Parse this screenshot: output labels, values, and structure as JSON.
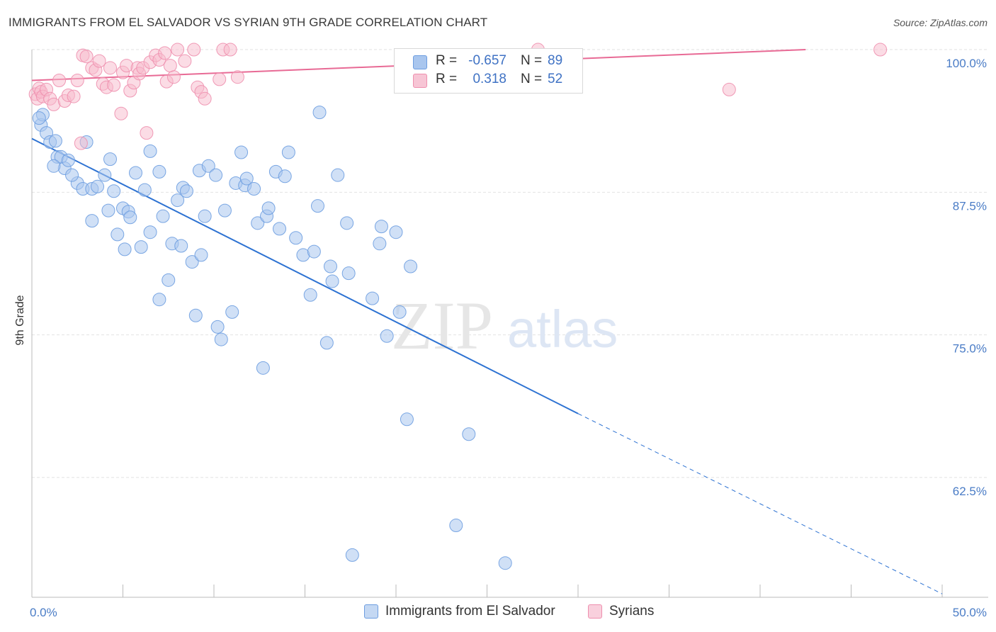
{
  "title": "IMMIGRANTS FROM EL SALVADOR VS SYRIAN 9TH GRADE CORRELATION CHART",
  "source": "Source: ZipAtlas.com",
  "watermark": {
    "zip": "ZIP",
    "atlas": "atlas"
  },
  "colors": {
    "blue_fill": "#a9c6ee",
    "blue_stroke": "#6d9de0",
    "blue_line": "#2d72d2",
    "pink_fill": "#f7b9cc",
    "pink_stroke": "#ee8fae",
    "pink_line": "#e86a95",
    "grid": "#e2e2e2",
    "tick_text": "#4a7cc6"
  },
  "legend_top": {
    "rows": [
      {
        "r_label": "R =",
        "r_value": "-0.657",
        "n_label": "N =",
        "n_value": "89"
      },
      {
        "r_label": "R =",
        "r_value": "0.318",
        "n_label": "N =",
        "n_value": "52"
      }
    ]
  },
  "legend_bottom": [
    "Immigrants from El Salvador",
    "Syrians"
  ],
  "chart_data": {
    "type": "scatter",
    "title": "IMMIGRANTS FROM EL SALVADOR VS SYRIAN 9TH GRADE CORRELATION CHART",
    "xlabel": "",
    "ylabel": "9th Grade",
    "xlim": [
      0,
      50
    ],
    "ylim": [
      52,
      100.5
    ],
    "x_tick_labels": [
      "0.0%",
      "50.0%"
    ],
    "y_ticks": [
      62.5,
      75.0,
      87.5,
      100.0
    ],
    "y_tick_labels": [
      "62.5%",
      "75.0%",
      "87.5%",
      "100.0%"
    ],
    "grid": true,
    "legend_position": "top-center",
    "series": [
      {
        "name": "Immigrants from El Salvador",
        "color": "#6d9de0",
        "r": -0.657,
        "n": 89,
        "trend": {
          "x": [
            0,
            30
          ],
          "y": [
            92.2,
            68.1
          ],
          "dashed_to": [
            50,
            52.3
          ]
        },
        "points": [
          [
            0.5,
            93.4
          ],
          [
            0.6,
            94.3
          ],
          [
            0.8,
            92.7
          ],
          [
            1.0,
            91.9
          ],
          [
            1.3,
            92.0
          ],
          [
            1.4,
            90.6
          ],
          [
            1.6,
            90.6
          ],
          [
            1.8,
            89.6
          ],
          [
            2.0,
            90.3
          ],
          [
            2.5,
            88.3
          ],
          [
            2.8,
            87.8
          ],
          [
            3.0,
            91.9
          ],
          [
            3.3,
            87.8
          ],
          [
            3.6,
            88.0
          ],
          [
            3.3,
            85.0
          ],
          [
            4.0,
            89.0
          ],
          [
            4.2,
            85.9
          ],
          [
            4.3,
            90.4
          ],
          [
            4.5,
            87.6
          ],
          [
            4.7,
            83.8
          ],
          [
            5.0,
            86.1
          ],
          [
            5.1,
            82.5
          ],
          [
            5.3,
            85.8
          ],
          [
            5.4,
            85.3
          ],
          [
            5.7,
            89.2
          ],
          [
            6.0,
            82.7
          ],
          [
            6.2,
            87.7
          ],
          [
            6.5,
            84.0
          ],
          [
            6.5,
            91.1
          ],
          [
            7.0,
            89.3
          ],
          [
            7.2,
            85.4
          ],
          [
            7.0,
            78.1
          ],
          [
            7.5,
            79.8
          ],
          [
            7.7,
            83.0
          ],
          [
            8.0,
            86.8
          ],
          [
            8.2,
            82.8
          ],
          [
            8.3,
            87.9
          ],
          [
            8.5,
            87.6
          ],
          [
            8.8,
            81.4
          ],
          [
            9.0,
            76.7
          ],
          [
            9.2,
            89.4
          ],
          [
            9.3,
            82.0
          ],
          [
            9.5,
            85.4
          ],
          [
            9.7,
            89.8
          ],
          [
            10.1,
            89.0
          ],
          [
            10.2,
            75.7
          ],
          [
            10.4,
            74.6
          ],
          [
            10.6,
            85.9
          ],
          [
            11.0,
            77.0
          ],
          [
            11.2,
            88.3
          ],
          [
            11.5,
            91.0
          ],
          [
            11.7,
            88.1
          ],
          [
            11.8,
            88.7
          ],
          [
            12.2,
            87.8
          ],
          [
            12.4,
            84.8
          ],
          [
            12.7,
            72.1
          ],
          [
            12.9,
            85.4
          ],
          [
            13.0,
            86.1
          ],
          [
            13.4,
            89.3
          ],
          [
            13.6,
            84.3
          ],
          [
            13.9,
            88.9
          ],
          [
            14.1,
            91.0
          ],
          [
            14.5,
            83.5
          ],
          [
            14.9,
            82.0
          ],
          [
            15.3,
            78.5
          ],
          [
            15.5,
            82.3
          ],
          [
            15.7,
            86.3
          ],
          [
            15.8,
            94.5
          ],
          [
            16.2,
            74.3
          ],
          [
            16.4,
            81.0
          ],
          [
            16.5,
            79.7
          ],
          [
            16.8,
            89.0
          ],
          [
            17.3,
            84.8
          ],
          [
            17.4,
            80.4
          ],
          [
            17.6,
            55.7
          ],
          [
            18.7,
            78.2
          ],
          [
            19.1,
            83.0
          ],
          [
            19.2,
            84.5
          ],
          [
            19.5,
            74.9
          ],
          [
            20.0,
            84.0
          ],
          [
            20.2,
            77.0
          ],
          [
            20.6,
            67.6
          ],
          [
            20.8,
            81.0
          ],
          [
            23.3,
            58.3
          ],
          [
            24.0,
            66.3
          ],
          [
            26.0,
            55.0
          ],
          [
            0.4,
            94.0
          ],
          [
            1.2,
            89.8
          ],
          [
            2.2,
            89.0
          ]
        ]
      },
      {
        "name": "Syrians",
        "color": "#ee8fae",
        "r": 0.318,
        "n": 52,
        "trend": {
          "x": [
            0,
            42.5
          ],
          "y": [
            97.3,
            100.0
          ]
        },
        "points": [
          [
            0.2,
            96.1
          ],
          [
            0.3,
            95.7
          ],
          [
            0.4,
            96.6
          ],
          [
            0.5,
            96.3
          ],
          [
            0.6,
            95.9
          ],
          [
            0.8,
            96.5
          ],
          [
            1.0,
            95.7
          ],
          [
            1.2,
            95.2
          ],
          [
            1.5,
            97.3
          ],
          [
            1.8,
            95.5
          ],
          [
            2.0,
            96.0
          ],
          [
            2.3,
            95.9
          ],
          [
            2.5,
            97.3
          ],
          [
            2.7,
            91.8
          ],
          [
            2.8,
            99.5
          ],
          [
            3.0,
            99.4
          ],
          [
            3.3,
            98.4
          ],
          [
            3.5,
            98.2
          ],
          [
            3.7,
            99.0
          ],
          [
            3.9,
            97.0
          ],
          [
            4.1,
            96.7
          ],
          [
            4.3,
            98.4
          ],
          [
            4.5,
            96.9
          ],
          [
            4.9,
            94.4
          ],
          [
            5.0,
            98.0
          ],
          [
            5.2,
            98.6
          ],
          [
            5.4,
            96.4
          ],
          [
            5.6,
            97.1
          ],
          [
            5.8,
            98.4
          ],
          [
            5.9,
            97.9
          ],
          [
            6.1,
            98.4
          ],
          [
            6.3,
            92.7
          ],
          [
            6.5,
            98.9
          ],
          [
            6.8,
            99.5
          ],
          [
            7.0,
            99.1
          ],
          [
            7.3,
            99.7
          ],
          [
            7.4,
            97.2
          ],
          [
            7.6,
            98.6
          ],
          [
            7.8,
            97.6
          ],
          [
            8.0,
            100.0
          ],
          [
            8.4,
            99.0
          ],
          [
            8.9,
            100.0
          ],
          [
            9.1,
            96.7
          ],
          [
            9.3,
            96.3
          ],
          [
            9.5,
            95.7
          ],
          [
            10.3,
            97.4
          ],
          [
            10.5,
            100.0
          ],
          [
            10.9,
            100.0
          ],
          [
            11.3,
            97.6
          ],
          [
            27.8,
            100.0
          ],
          [
            38.3,
            96.5
          ],
          [
            46.6,
            100.0
          ]
        ]
      }
    ]
  }
}
